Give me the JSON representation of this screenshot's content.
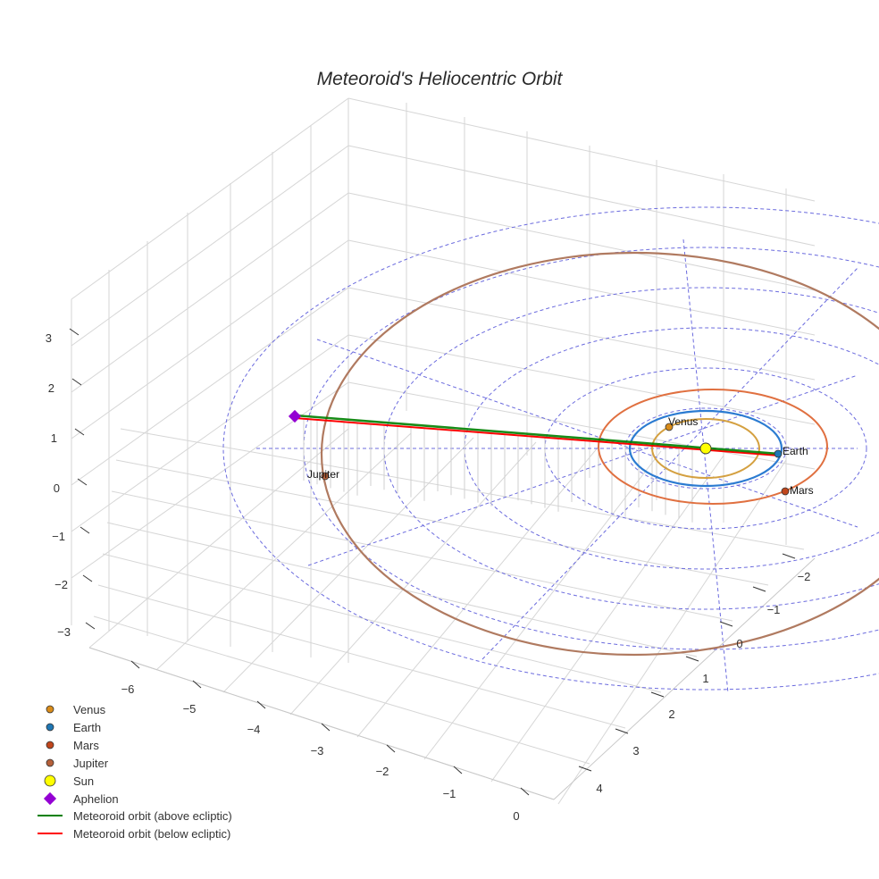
{
  "chart_data": {
    "type": "scatter",
    "title": "Meteoroid's Heliocentric Orbit",
    "axes": {
      "x": {
        "ticks": [
          "−6",
          "−5",
          "−4",
          "−3",
          "−2",
          "−1",
          "0"
        ]
      },
      "y": {
        "ticks": [
          "−2",
          "−1",
          "0",
          "1",
          "2",
          "3",
          "4"
        ]
      },
      "z": {
        "ticks": [
          "3",
          "2",
          "1",
          "0",
          "−1",
          "−2",
          "−3"
        ]
      }
    },
    "planets": [
      {
        "name": "Venus",
        "color": "#d98c1a",
        "orbit_color": "#d4a040"
      },
      {
        "name": "Earth",
        "color": "#1f77b4",
        "orbit_color": "#2b7bd1"
      },
      {
        "name": "Mars",
        "color": "#c0461c",
        "orbit_color": "#e07040"
      },
      {
        "name": "Jupiter",
        "color": "#b5603a",
        "orbit_color": "#b07a60"
      }
    ],
    "sun": {
      "name": "Sun",
      "color": "#ffff00"
    },
    "aphelion": {
      "name": "Aphelion",
      "color": "#9400d3"
    },
    "meteoroid_orbit": [
      {
        "name": "Meteoroid orbit (above ecliptic)",
        "color": "#008000"
      },
      {
        "name": "Meteoroid orbit (below ecliptic)",
        "color": "#ff0000"
      }
    ],
    "grid": true,
    "legend_position": "bottom-left"
  }
}
